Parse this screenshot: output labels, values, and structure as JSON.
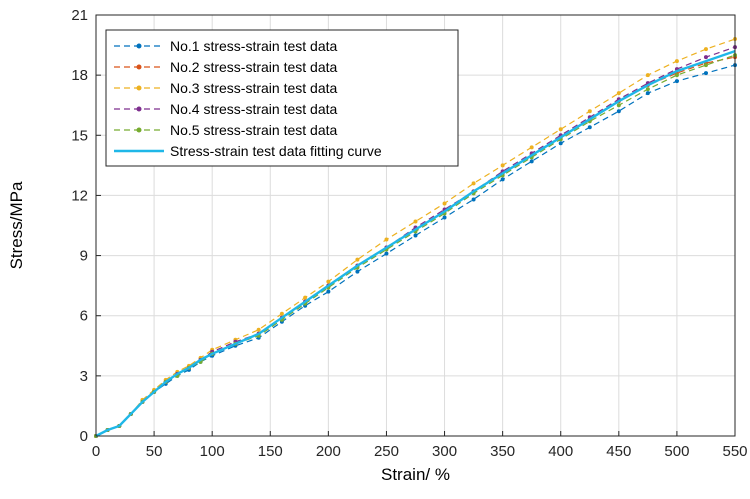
{
  "chart_data": {
    "type": "line",
    "title": "",
    "xlabel": "Strain/ %",
    "ylabel": "Stress/MPa",
    "xlim": [
      0,
      550
    ],
    "ylim": [
      0,
      21
    ],
    "xticks": [
      0,
      50,
      100,
      150,
      200,
      250,
      300,
      350,
      400,
      450,
      500,
      550
    ],
    "yticks": [
      0,
      3,
      6,
      9,
      12,
      15,
      18,
      21
    ],
    "grid": true,
    "legend_position": "top-left",
    "series": [
      {
        "name": "No.1 stress-strain test data",
        "color": "#0072BD",
        "style": "dashed-markers",
        "x": [
          0,
          10,
          20,
          30,
          40,
          50,
          60,
          70,
          80,
          90,
          100,
          120,
          140,
          160,
          180,
          200,
          225,
          250,
          275,
          300,
          325,
          350,
          375,
          400,
          425,
          450,
          475,
          500,
          525,
          550
        ],
        "y": [
          0,
          0.3,
          0.5,
          1.1,
          1.7,
          2.2,
          2.6,
          3.0,
          3.3,
          3.7,
          4.0,
          4.5,
          4.9,
          5.7,
          6.5,
          7.2,
          8.2,
          9.1,
          10.0,
          10.9,
          11.8,
          12.8,
          13.7,
          14.6,
          15.4,
          16.2,
          17.1,
          17.7,
          18.1,
          18.5
        ]
      },
      {
        "name": "No.2 stress-strain test data",
        "color": "#D95319",
        "style": "dashed-markers",
        "x": [
          0,
          10,
          20,
          30,
          40,
          50,
          60,
          70,
          80,
          90,
          100,
          120,
          140,
          160,
          180,
          200,
          225,
          250,
          275,
          300,
          325,
          350,
          375,
          400,
          425,
          450,
          475,
          500,
          525,
          550
        ],
        "y": [
          0,
          0.3,
          0.5,
          1.1,
          1.7,
          2.2,
          2.7,
          3.1,
          3.4,
          3.8,
          4.1,
          4.6,
          5.1,
          5.9,
          6.7,
          7.5,
          8.5,
          9.4,
          10.3,
          11.2,
          12.2,
          13.1,
          14.0,
          14.9,
          15.8,
          16.7,
          17.5,
          18.1,
          18.6,
          18.9
        ]
      },
      {
        "name": "No.3 stress-strain test data",
        "color": "#EDB120",
        "style": "dashed-markers",
        "x": [
          0,
          10,
          20,
          30,
          40,
          50,
          60,
          70,
          80,
          90,
          100,
          120,
          140,
          160,
          180,
          200,
          225,
          250,
          275,
          300,
          325,
          350,
          375,
          400,
          425,
          450,
          475,
          500,
          525,
          550
        ],
        "y": [
          0,
          0.3,
          0.5,
          1.1,
          1.8,
          2.3,
          2.8,
          3.2,
          3.5,
          3.9,
          4.3,
          4.8,
          5.3,
          6.1,
          6.9,
          7.7,
          8.8,
          9.8,
          10.7,
          11.6,
          12.6,
          13.5,
          14.4,
          15.3,
          16.2,
          17.1,
          18.0,
          18.7,
          19.3,
          19.8
        ]
      },
      {
        "name": "No.4 stress-strain test data",
        "color": "#7E2F8E",
        "style": "dashed-markers",
        "x": [
          0,
          10,
          20,
          30,
          40,
          50,
          60,
          70,
          80,
          90,
          100,
          120,
          140,
          160,
          180,
          200,
          225,
          250,
          275,
          300,
          325,
          350,
          375,
          400,
          425,
          450,
          475,
          500,
          525,
          550
        ],
        "y": [
          0,
          0.3,
          0.5,
          1.1,
          1.7,
          2.2,
          2.7,
          3.1,
          3.4,
          3.8,
          4.2,
          4.7,
          5.1,
          5.9,
          6.7,
          7.5,
          8.5,
          9.4,
          10.4,
          11.3,
          12.2,
          13.2,
          14.1,
          15.0,
          15.9,
          16.8,
          17.6,
          18.3,
          18.9,
          19.4
        ]
      },
      {
        "name": "No.5 stress-strain test data",
        "color": "#77AC30",
        "style": "dashed-markers",
        "x": [
          0,
          10,
          20,
          30,
          40,
          50,
          60,
          70,
          80,
          90,
          100,
          120,
          140,
          160,
          180,
          200,
          225,
          250,
          275,
          300,
          325,
          350,
          375,
          400,
          425,
          450,
          475,
          500,
          525,
          550
        ],
        "y": [
          0,
          0.3,
          0.5,
          1.1,
          1.7,
          2.2,
          2.7,
          3.0,
          3.4,
          3.7,
          4.1,
          4.6,
          5.0,
          5.8,
          6.6,
          7.4,
          8.4,
          9.3,
          10.2,
          11.1,
          12.1,
          13.0,
          13.9,
          14.8,
          15.7,
          16.5,
          17.3,
          18.0,
          18.5,
          19.0
        ]
      },
      {
        "name": "Stress-strain test data fitting curve",
        "color": "#1FB7E8",
        "style": "solid",
        "x": [
          0,
          10,
          20,
          30,
          40,
          50,
          60,
          70,
          80,
          90,
          100,
          120,
          140,
          160,
          180,
          200,
          225,
          250,
          275,
          300,
          325,
          350,
          375,
          400,
          425,
          450,
          475,
          500,
          525,
          550
        ],
        "y": [
          0,
          0.3,
          0.5,
          1.1,
          1.7,
          2.2,
          2.7,
          3.1,
          3.4,
          3.8,
          4.1,
          4.6,
          5.1,
          5.9,
          6.7,
          7.5,
          8.5,
          9.4,
          10.3,
          11.2,
          12.2,
          13.1,
          14.0,
          14.9,
          15.8,
          16.7,
          17.5,
          18.2,
          18.7,
          19.2
        ]
      }
    ]
  }
}
